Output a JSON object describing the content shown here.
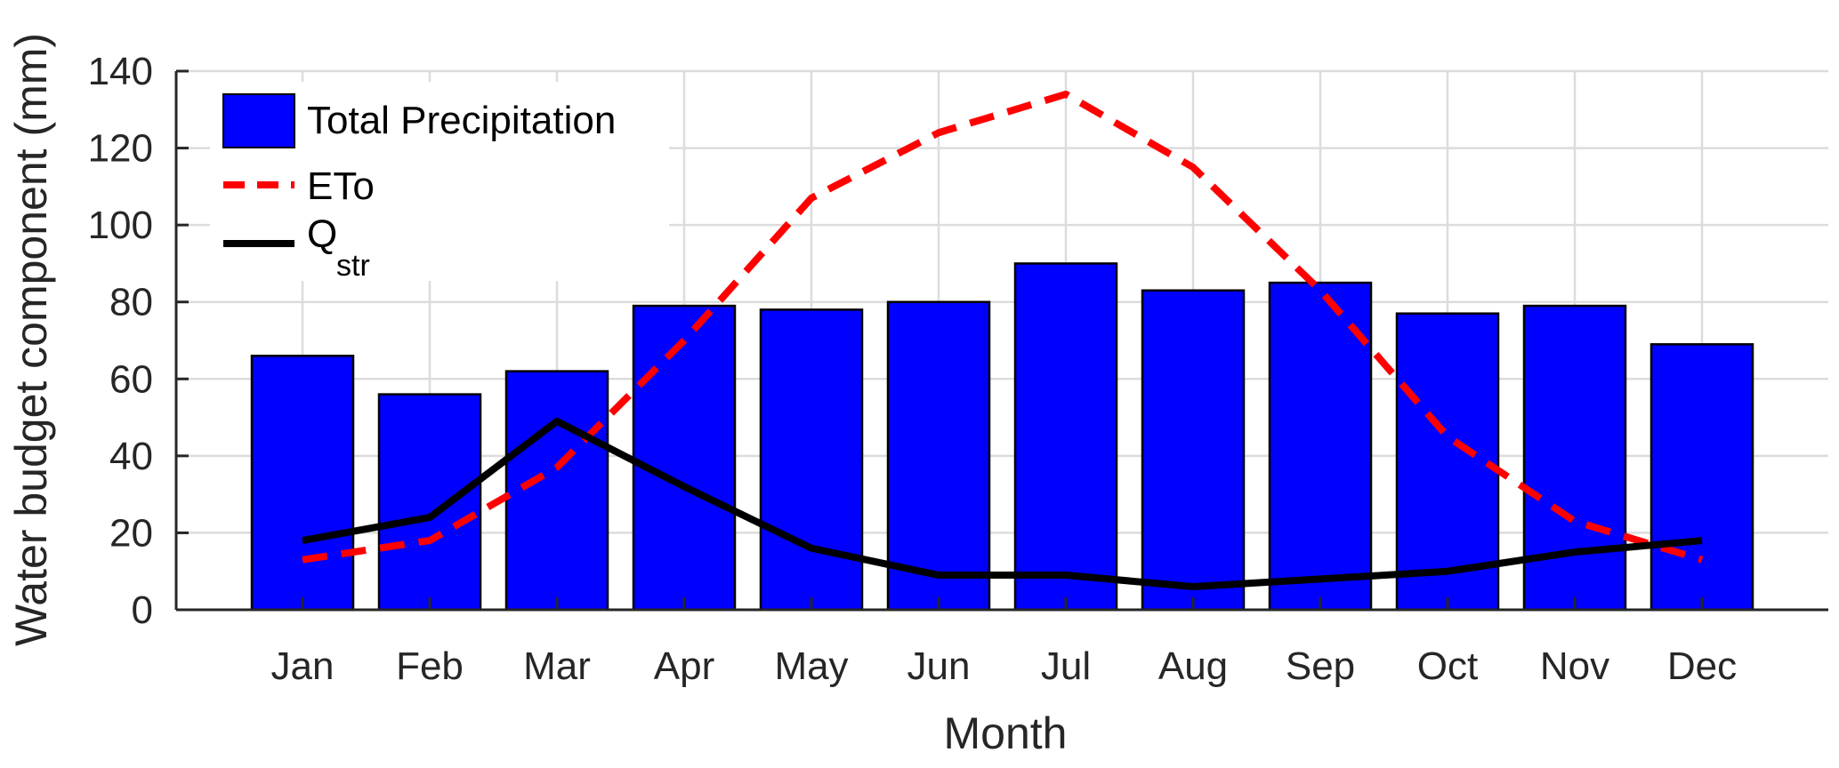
{
  "chart_data": {
    "type": "bar",
    "xlabel": "Month",
    "ylabel": "Water budget component (mm)",
    "categories": [
      "Jan",
      "Feb",
      "Mar",
      "Apr",
      "May",
      "Jun",
      "Jul",
      "Aug",
      "Sep",
      "Oct",
      "Nov",
      "Dec"
    ],
    "ylim": [
      0,
      140
    ],
    "yticks": [
      0,
      20,
      40,
      60,
      80,
      100,
      120,
      140
    ],
    "grid": true,
    "legend_position": "top-left",
    "series": [
      {
        "name": "Total Precipitation",
        "type": "bar",
        "color": "#0000ff",
        "values": [
          66,
          56,
          62,
          79,
          78,
          80,
          90,
          83,
          85,
          77,
          79,
          69
        ]
      },
      {
        "name": "ETo",
        "type": "line",
        "style": "dashed",
        "color": "#ff0000",
        "values": [
          13,
          18,
          37,
          70,
          107,
          124,
          134,
          115,
          83,
          45,
          23,
          13
        ]
      },
      {
        "name": "Q",
        "name_subscript": "str",
        "type": "line",
        "style": "solid",
        "color": "#000000",
        "values": [
          18,
          24,
          49,
          32,
          16,
          9,
          9,
          6,
          8,
          10,
          15,
          18
        ]
      }
    ]
  }
}
